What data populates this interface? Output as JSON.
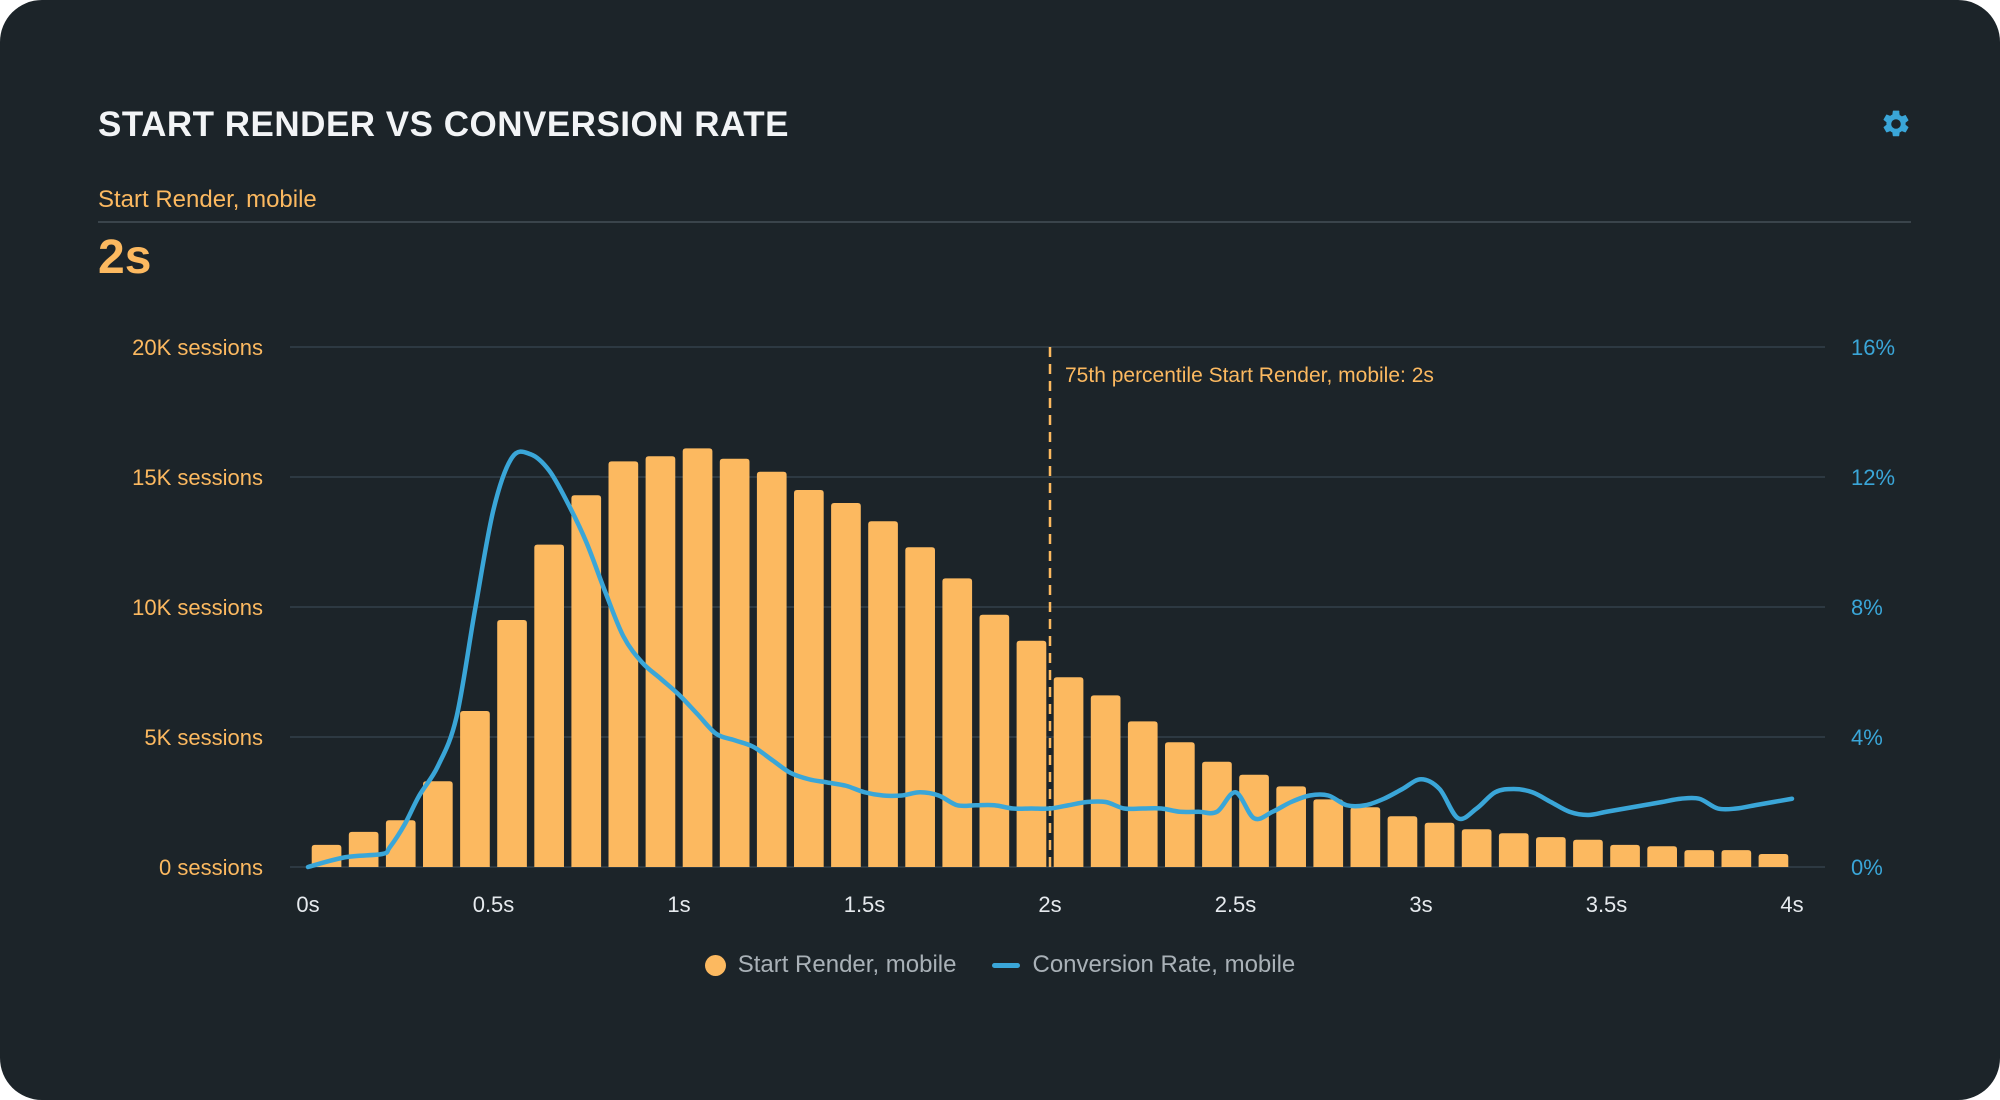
{
  "header": {
    "title": "START RENDER VS CONVERSION RATE",
    "subtitle": "Start Render, mobile",
    "metric": "2s"
  },
  "icons": {
    "settings": "gear-icon"
  },
  "colors": {
    "background": "#1c2429",
    "bars": "#fcb960",
    "line": "#3aa6d8",
    "grid": "#33404a",
    "left_axis": "#fcb960",
    "right_axis": "#3aa6d8",
    "x_axis": "#e6eaee"
  },
  "chart_data": {
    "type": "bar",
    "x_unit": "s",
    "bar_width": 0.1,
    "xlim": [
      0,
      4
    ],
    "x_ticks": [
      0,
      0.5,
      1,
      1.5,
      2,
      2.5,
      3,
      3.5,
      4
    ],
    "x_tick_labels": [
      "0s",
      "0.5s",
      "1s",
      "1.5s",
      "2s",
      "2.5s",
      "3s",
      "3.5s",
      "4s"
    ],
    "ylim_left": [
      0,
      20000
    ],
    "y_ticks_left": [
      0,
      5000,
      10000,
      15000,
      20000
    ],
    "y_tick_labels_left": [
      "0 sessions",
      "5K sessions",
      "10K sessions",
      "15K sessions",
      "20K sessions"
    ],
    "ylim_right": [
      0,
      16
    ],
    "y_ticks_right": [
      0,
      4,
      8,
      12,
      16
    ],
    "y_tick_labels_right": [
      "0%",
      "4%",
      "8%",
      "12%",
      "16%"
    ],
    "grid": true,
    "legend_position": "bottom-center",
    "series": [
      {
        "name": "Start Render, mobile",
        "type": "bar",
        "axis": "left",
        "x": [
          0.1,
          0.2,
          0.3,
          0.4,
          0.5,
          0.6,
          0.7,
          0.8,
          0.9,
          1.0,
          1.1,
          1.2,
          1.3,
          1.4,
          1.5,
          1.6,
          1.7,
          1.8,
          1.9,
          2.0,
          2.1,
          2.2,
          2.3,
          2.4,
          2.5,
          2.6,
          2.7,
          2.8,
          2.9,
          3.0,
          3.1,
          3.2,
          3.3,
          3.4,
          3.5,
          3.6,
          3.7,
          3.8,
          3.9,
          4.0
        ],
        "values": [
          850,
          1350,
          1800,
          3300,
          6000,
          9500,
          12400,
          14300,
          15600,
          15800,
          16100,
          15700,
          15200,
          14500,
          14000,
          13300,
          12300,
          11100,
          9700,
          8700,
          7300,
          6600,
          5600,
          4800,
          4050,
          3550,
          3100,
          2600,
          2300,
          1950,
          1700,
          1450,
          1300,
          1150,
          1050,
          850,
          800,
          650,
          650,
          500
        ]
      },
      {
        "name": "Conversion Rate, mobile",
        "type": "line",
        "axis": "right",
        "x": [
          0,
          0.1,
          0.2,
          0.22,
          0.26,
          0.3,
          0.35,
          0.4,
          0.45,
          0.5,
          0.55,
          0.6,
          0.65,
          0.7,
          0.75,
          0.8,
          0.85,
          0.9,
          0.95,
          1.0,
          1.05,
          1.1,
          1.15,
          1.2,
          1.25,
          1.3,
          1.35,
          1.4,
          1.45,
          1.5,
          1.55,
          1.6,
          1.65,
          1.7,
          1.75,
          1.8,
          1.85,
          1.9,
          1.95,
          2.0,
          2.05,
          2.1,
          2.15,
          2.2,
          2.25,
          2.3,
          2.35,
          2.4,
          2.45,
          2.5,
          2.55,
          2.6,
          2.65,
          2.7,
          2.75,
          2.8,
          2.85,
          2.9,
          2.95,
          3.0,
          3.05,
          3.1,
          3.15,
          3.2,
          3.25,
          3.3,
          3.35,
          3.4,
          3.45,
          3.5,
          3.55,
          3.6,
          3.65,
          3.7,
          3.75,
          3.8,
          3.85,
          3.9,
          3.95,
          4.0
        ],
        "values": [
          0.0,
          0.3,
          0.4,
          0.6,
          1.3,
          2.2,
          3.1,
          4.6,
          7.9,
          11.0,
          12.6,
          12.7,
          12.2,
          11.2,
          10.0,
          8.5,
          7.1,
          6.3,
          5.8,
          5.3,
          4.7,
          4.1,
          3.9,
          3.7,
          3.3,
          2.9,
          2.7,
          2.6,
          2.5,
          2.3,
          2.2,
          2.2,
          2.3,
          2.2,
          1.9,
          1.9,
          1.9,
          1.8,
          1.8,
          1.8,
          1.9,
          2.0,
          2.0,
          1.8,
          1.8,
          1.8,
          1.7,
          1.7,
          1.7,
          2.3,
          1.5,
          1.7,
          2.0,
          2.2,
          2.2,
          1.9,
          1.9,
          2.1,
          2.4,
          2.7,
          2.4,
          1.5,
          1.8,
          2.3,
          2.4,
          2.3,
          2.0,
          1.7,
          1.6,
          1.7,
          1.8,
          1.9,
          2.0,
          2.1,
          2.1,
          1.8,
          1.8,
          1.9,
          2.0,
          2.1
        ]
      }
    ],
    "annotation": {
      "x": 2.0,
      "label": "75th percentile Start Render, mobile: 2s"
    }
  }
}
